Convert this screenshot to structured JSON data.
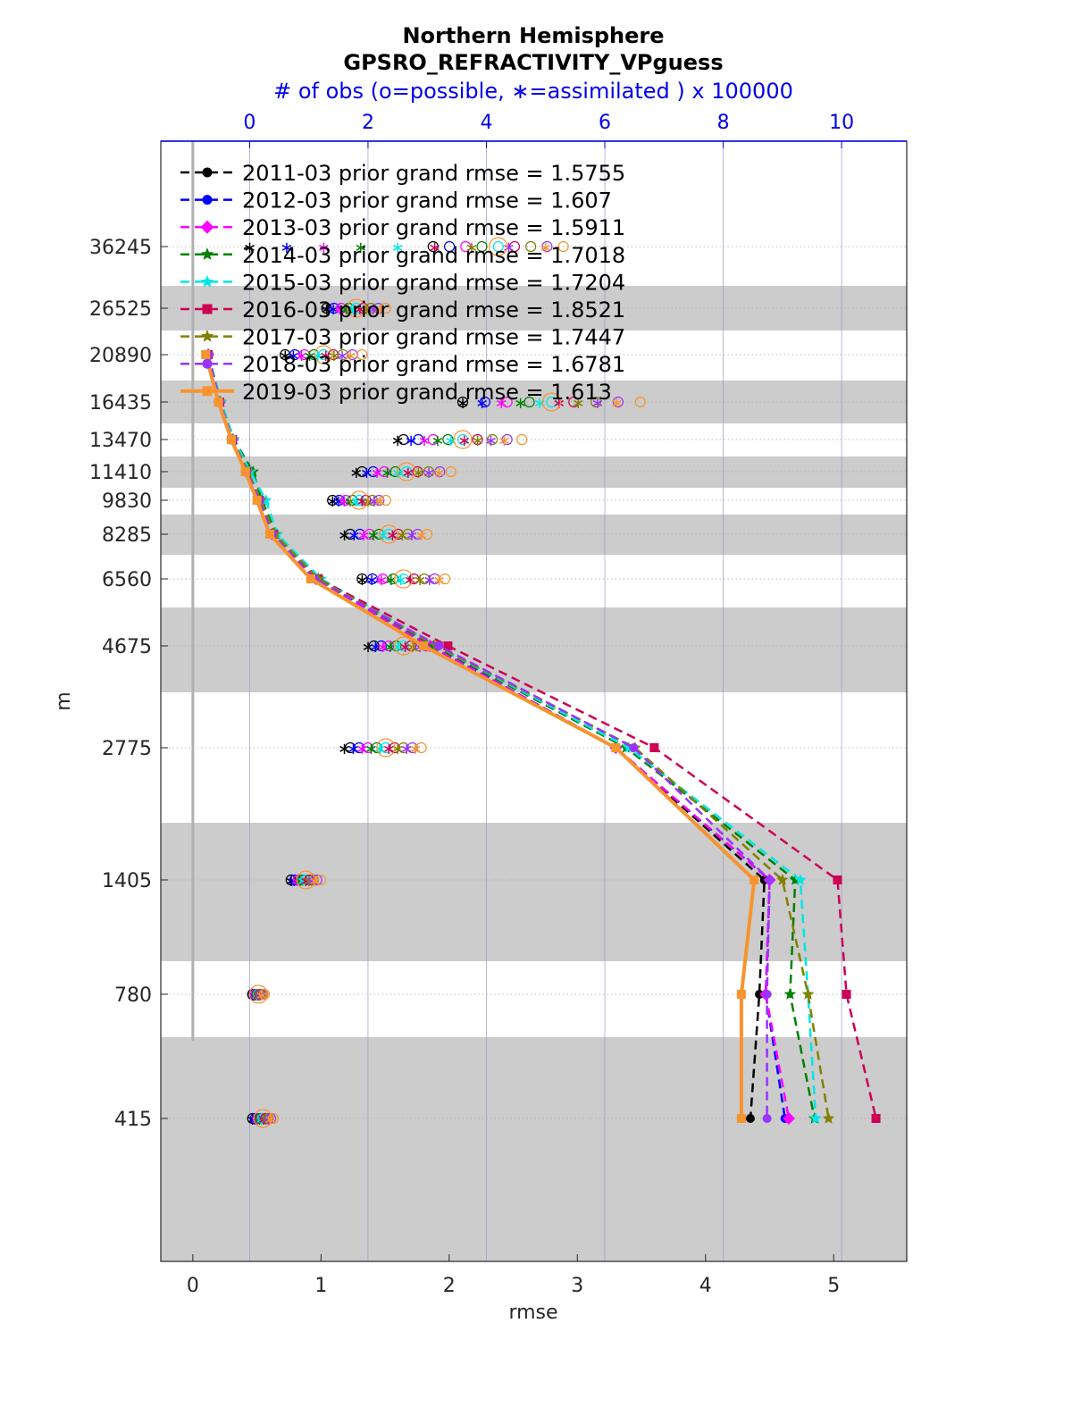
{
  "chart_data": {
    "type": "line",
    "title": "Northern Hemisphere",
    "subtitle": "GPSRO_REFRACTIVITY_VPguess",
    "top_axis_label": "# of obs (o=possible, ∗=assimilated ) x 100000",
    "xlabel": "rmse",
    "ylabel": "m",
    "xlim": [
      -0.25,
      5.57
    ],
    "top_axis_range": [
      -1.5,
      11.1
    ],
    "x_ticks": [
      "0",
      "1",
      "2",
      "3",
      "4",
      "5"
    ],
    "top_ticks": [
      "0",
      "2",
      "4",
      "6",
      "8",
      "10"
    ],
    "y_tick_labels": [
      "36245",
      "26525",
      "20890",
      "16435",
      "13470",
      "11410",
      "9830",
      "8285",
      "6560",
      "4675",
      "2775",
      "1405",
      "780",
      "415"
    ],
    "y_levels": [
      36245,
      26525,
      20890,
      16435,
      13470,
      11410,
      9830,
      8285,
      6560,
      4675,
      2775,
      1405,
      780,
      415
    ],
    "legend_position": "top-left",
    "grid": true,
    "series": [
      {
        "name": "2011-03 prior grand rmse = 1.5755",
        "color": "#000000",
        "marker": "circle",
        "dash": true,
        "width": 2.5,
        "values": [
          null,
          null,
          0.12,
          0.21,
          0.31,
          0.42,
          0.52,
          0.62,
          0.95,
          1.85,
          3.3,
          4.46,
          4.42,
          4.35
        ]
      },
      {
        "name": "2012-03 prior grand rmse = 1.607",
        "color": "#0000ff",
        "marker": "circle",
        "dash": true,
        "width": 2.5,
        "values": [
          null,
          null,
          0.12,
          0.21,
          0.31,
          0.42,
          0.52,
          0.63,
          0.97,
          1.86,
          3.3,
          4.5,
          4.47,
          4.62
        ]
      },
      {
        "name": "2013-03 prior grand rmse = 1.5911",
        "color": "#ff00ff",
        "marker": "diamond",
        "dash": true,
        "width": 2.5,
        "values": [
          null,
          null,
          0.12,
          0.21,
          0.31,
          0.42,
          0.52,
          0.62,
          0.96,
          1.85,
          3.3,
          4.5,
          4.47,
          4.65
        ]
      },
      {
        "name": "2014-03 prior grand rmse = 1.7018",
        "color": "#008000",
        "marker": "star",
        "dash": true,
        "width": 2.5,
        "values": [
          null,
          null,
          0.12,
          0.22,
          0.32,
          0.47,
          0.54,
          0.65,
          0.98,
          1.88,
          3.38,
          4.7,
          4.66,
          4.85
        ]
      },
      {
        "name": "2015-03 prior grand rmse = 1.7204",
        "color": "#00e6e6",
        "marker": "star",
        "dash": true,
        "width": 2.5,
        "values": [
          null,
          null,
          0.12,
          0.22,
          0.32,
          0.45,
          0.57,
          0.66,
          1.0,
          1.9,
          3.4,
          4.74,
          4.8,
          4.86
        ]
      },
      {
        "name": "2016-03 prior grand rmse = 1.8521",
        "color": "#cc0055",
        "marker": "square",
        "dash": true,
        "width": 2.5,
        "values": [
          null,
          null,
          0.12,
          0.21,
          0.31,
          0.42,
          0.52,
          0.63,
          0.98,
          1.99,
          3.6,
          5.03,
          5.1,
          5.33
        ]
      },
      {
        "name": "2017-03 prior grand rmse = 1.7447",
        "color": "#808000",
        "marker": "star",
        "dash": true,
        "width": 2.5,
        "values": [
          null,
          null,
          0.12,
          0.21,
          0.31,
          0.43,
          0.53,
          0.64,
          0.98,
          1.9,
          3.45,
          4.6,
          4.8,
          4.96
        ]
      },
      {
        "name": "2018-03 prior grand rmse = 1.6781",
        "color": "#9933ff",
        "marker": "circle",
        "dash": true,
        "width": 2.5,
        "values": [
          null,
          null,
          0.12,
          0.21,
          0.31,
          0.42,
          0.52,
          0.62,
          0.95,
          1.92,
          3.44,
          4.5,
          4.48,
          4.48
        ]
      },
      {
        "name": "2019-03 prior grand rmse = 1.613",
        "color": "#f7942e",
        "marker": "square",
        "dash": false,
        "width": 4,
        "values": [
          null,
          null,
          0.1,
          0.2,
          0.3,
          0.41,
          0.5,
          0.6,
          0.92,
          1.8,
          3.3,
          4.38,
          4.28,
          4.28
        ]
      }
    ],
    "obs_counts": {
      "levels": [
        36245,
        26525,
        20890,
        16435,
        13470,
        11410,
        9830,
        8285,
        6560,
        4675,
        2775,
        1405,
        780,
        415
      ],
      "possible_min": [
        3.1,
        1.3,
        0.6,
        3.6,
        2.6,
        1.9,
        1.4,
        1.7,
        1.9,
        2.1,
        1.7,
        0.7,
        0.05,
        0.05
      ],
      "possible_max": [
        5.3,
        2.3,
        1.9,
        6.6,
        4.6,
        3.4,
        2.3,
        3.0,
        3.3,
        3.1,
        2.9,
        1.2,
        0.25,
        0.4
      ],
      "assimilated_min": [
        0.0,
        1.3,
        0.6,
        3.6,
        2.5,
        1.8,
        1.4,
        1.6,
        1.9,
        2.0,
        1.6,
        0.7,
        0.05,
        0.05
      ],
      "assimilated_max": [
        5.0,
        2.2,
        1.7,
        6.2,
        4.3,
        3.2,
        2.2,
        2.9,
        3.2,
        3.0,
        2.8,
        1.1,
        0.2,
        0.35
      ]
    },
    "marker_symbols": {
      "possible": "○",
      "assimilated": "∗"
    },
    "grey_bands": [
      [
        36245,
        26525
      ],
      [
        20890,
        16435
      ],
      [
        13470,
        11410
      ],
      [
        9830,
        8285
      ],
      [
        6560,
        4675
      ],
      [
        2775,
        1405
      ],
      [
        780,
        415
      ]
    ]
  }
}
